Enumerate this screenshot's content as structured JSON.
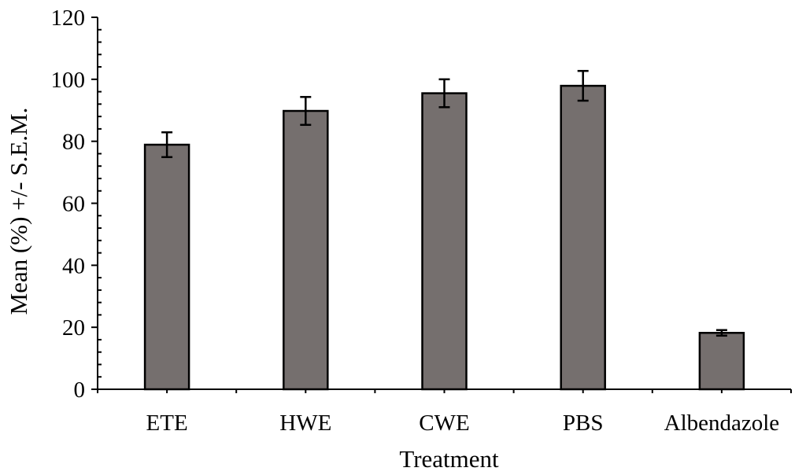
{
  "chart_data": {
    "type": "bar",
    "xlabel": "Treatment",
    "ylabel": "Mean (%) +/- S.E.M.",
    "categories": [
      "ETE",
      "HWE",
      "CWE",
      "PBS",
      "Albendazole"
    ],
    "values": [
      78.9,
      89.8,
      95.5,
      97.9,
      18.2
    ],
    "errors": [
      4.0,
      4.5,
      4.5,
      4.8,
      0.9
    ],
    "ylim": [
      0,
      120
    ],
    "yticks": [
      0,
      20,
      40,
      60,
      80,
      100,
      120
    ],
    "ytick_labels": [
      "0",
      "20",
      "40",
      "60",
      "80",
      "100",
      "120"
    ],
    "grid": false,
    "colors": {
      "bar": "#756f6e",
      "axis": "#000000"
    }
  }
}
